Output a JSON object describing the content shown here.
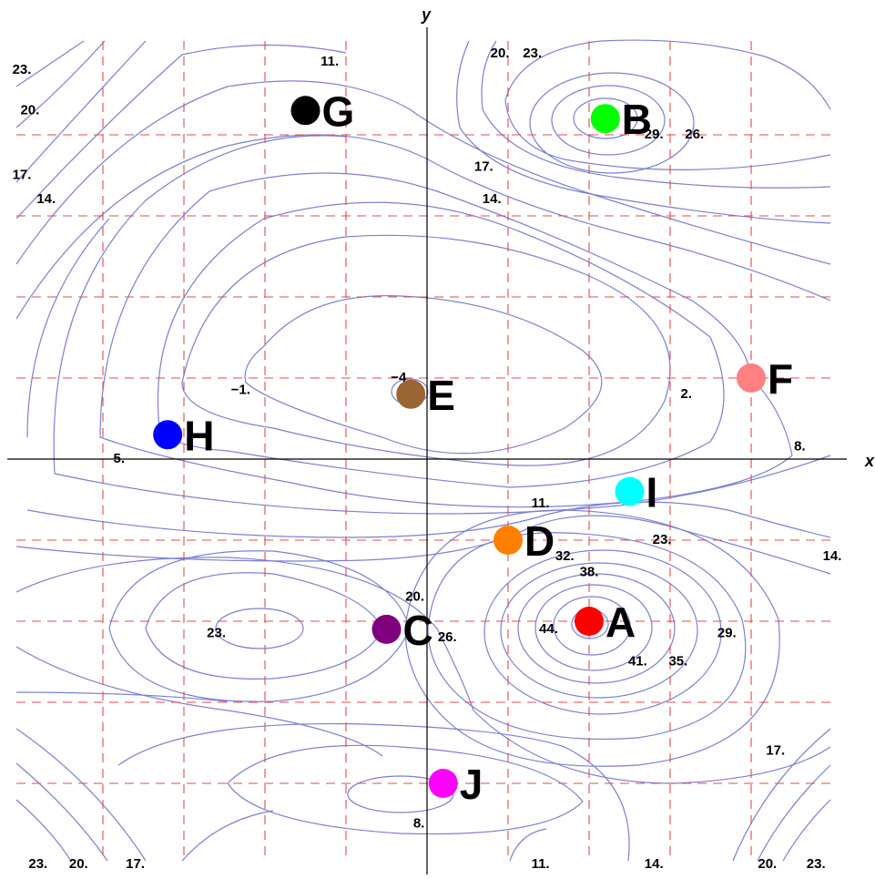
{
  "chart_data": {
    "type": "contour",
    "xlabel": "x",
    "ylabel": "y",
    "xlim": [
      -5.3,
      5.3
    ],
    "ylim": [
      -5.3,
      5.3
    ],
    "grid": true,
    "grid_values": [
      -4,
      -3,
      -2,
      -1,
      1,
      2,
      3,
      4
    ],
    "points": [
      {
        "label": "A",
        "x": 2,
        "y": -2,
        "color": "#ff0000"
      },
      {
        "label": "B",
        "x": 2.2,
        "y": 4.2,
        "color": "#00ff00"
      },
      {
        "label": "C",
        "x": -0.5,
        "y": -2.1,
        "color": "#800080"
      },
      {
        "label": "D",
        "x": 1,
        "y": -1,
        "color": "#ff8000"
      },
      {
        "label": "E",
        "x": -0.2,
        "y": 0.8,
        "color": "#996633"
      },
      {
        "label": "F",
        "x": 4,
        "y": 1,
        "color": "#ff8080"
      },
      {
        "label": "G",
        "x": -1.5,
        "y": 4.3,
        "color": "#000000"
      },
      {
        "label": "H",
        "x": -3.2,
        "y": 0.3,
        "color": "#0000ff"
      },
      {
        "label": "I",
        "x": 2.5,
        "y": -0.4,
        "color": "#00ffff"
      },
      {
        "label": "J",
        "x": 0.2,
        "y": -4,
        "color": "#ff00ff"
      }
    ],
    "contour_labels": [
      {
        "text": "23.",
        "x": -5.0,
        "y": 4.8
      },
      {
        "text": "20.",
        "x": -4.9,
        "y": 4.3
      },
      {
        "text": "17.",
        "x": -5.0,
        "y": 3.5
      },
      {
        "text": "14.",
        "x": -4.7,
        "y": 3.2
      },
      {
        "text": "11.",
        "x": -1.2,
        "y": 4.9
      },
      {
        "text": "20.",
        "x": 0.9,
        "y": 5.0
      },
      {
        "text": "23.",
        "x": 1.3,
        "y": 5.0
      },
      {
        "text": "29.",
        "x": 2.8,
        "y": 4.0
      },
      {
        "text": "26.",
        "x": 3.3,
        "y": 4.0
      },
      {
        "text": "17.",
        "x": 0.7,
        "y": 3.6
      },
      {
        "text": "14.",
        "x": 0.8,
        "y": 3.2
      },
      {
        "text": "-4",
        "x": -0.35,
        "y": 1.0
      },
      {
        "text": "-1.",
        "x": -2.3,
        "y": 0.85
      },
      {
        "text": "2.",
        "x": 3.2,
        "y": 0.8
      },
      {
        "text": "5.",
        "x": -3.8,
        "y": 0.0
      },
      {
        "text": "8.",
        "x": 4.6,
        "y": 0.15
      },
      {
        "text": "11.",
        "x": 1.4,
        "y": -0.55
      },
      {
        "text": "23.",
        "x": 2.9,
        "y": -1.0
      },
      {
        "text": "14.",
        "x": 5.0,
        "y": -1.2
      },
      {
        "text": "32.",
        "x": 1.7,
        "y": -1.2
      },
      {
        "text": "38.",
        "x": 2.0,
        "y": -1.4
      },
      {
        "text": "20.",
        "x": -0.15,
        "y": -1.7
      },
      {
        "text": "44.",
        "x": 1.5,
        "y": -2.1
      },
      {
        "text": "23.",
        "x": -2.6,
        "y": -2.15
      },
      {
        "text": "26.",
        "x": 0.25,
        "y": -2.2
      },
      {
        "text": "29.",
        "x": 3.7,
        "y": -2.15
      },
      {
        "text": "41.",
        "x": 2.6,
        "y": -2.5
      },
      {
        "text": "35.",
        "x": 3.1,
        "y": -2.5
      },
      {
        "text": "17.",
        "x": 4.3,
        "y": -3.6
      },
      {
        "text": "8.",
        "x": -0.1,
        "y": -4.5
      },
      {
        "text": "23.",
        "x": -4.8,
        "y": -5.0
      },
      {
        "text": "20.",
        "x": -4.3,
        "y": -5.0
      },
      {
        "text": "17.",
        "x": -3.6,
        "y": -5.0
      },
      {
        "text": "11.",
        "x": 1.4,
        "y": -5.0
      },
      {
        "text": "14.",
        "x": 2.8,
        "y": -5.0
      },
      {
        "text": "20.",
        "x": 4.2,
        "y": -5.0
      },
      {
        "text": "23.",
        "x": 4.8,
        "y": -5.0
      }
    ]
  }
}
